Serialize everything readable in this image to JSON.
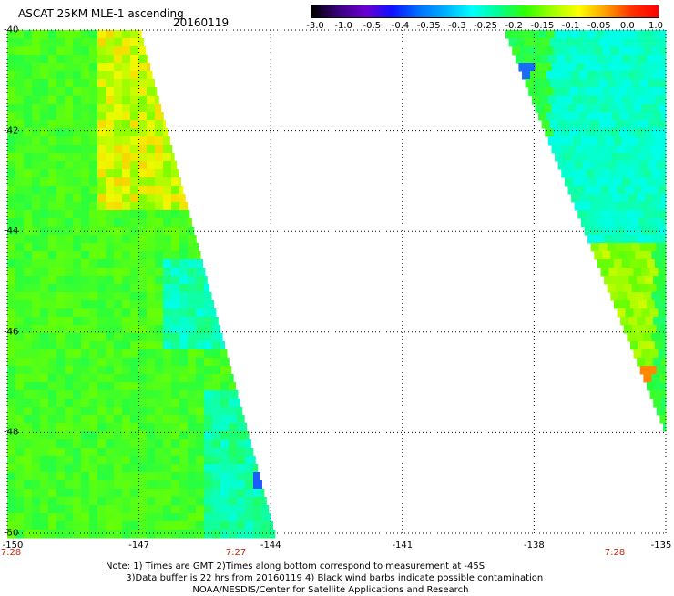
{
  "header": {
    "title": "ASCAT 25KM MLE-1 ascending",
    "date": "20160119"
  },
  "colorbar": {
    "labels": [
      "-3.0",
      "-1.0",
      "-0.5",
      "-0.4",
      "-0.35",
      "-0.3",
      "-0.25",
      "-0.2",
      "-0.15",
      "-0.1",
      "-0.05",
      "0.0",
      "1.0"
    ],
    "colors": [
      "#000000",
      "#3a0080",
      "#6a00d0",
      "#1010ff",
      "#0070ff",
      "#00b0ff",
      "#00ffff",
      "#00ff90",
      "#30ff00",
      "#a0ff00",
      "#ffff00",
      "#ffa000",
      "#ff3000",
      "#ff0000"
    ]
  },
  "axes": {
    "y_labels": [
      "-40",
      "-42",
      "-44",
      "-46",
      "-48",
      "-50"
    ],
    "x_labels": [
      "-150",
      "-147",
      "-144",
      "-141",
      "-138",
      "-135"
    ]
  },
  "times": [
    "7:28",
    "7:27",
    "7:28"
  ],
  "notes": {
    "line1": "Note: 1) Times are GMT 2)Times along bottom correspond to measurement at -45S",
    "line2": "       3)Data buffer is 22 hrs from 20160119 4) Black wind barbs indicate possible contamination",
    "line3": "                              NOAA/NESDIS/Center for Satellite Applications and Research"
  },
  "map_data": {
    "lon_range": [
      -150,
      -135
    ],
    "lat_range": [
      -50,
      -40
    ]
  }
}
